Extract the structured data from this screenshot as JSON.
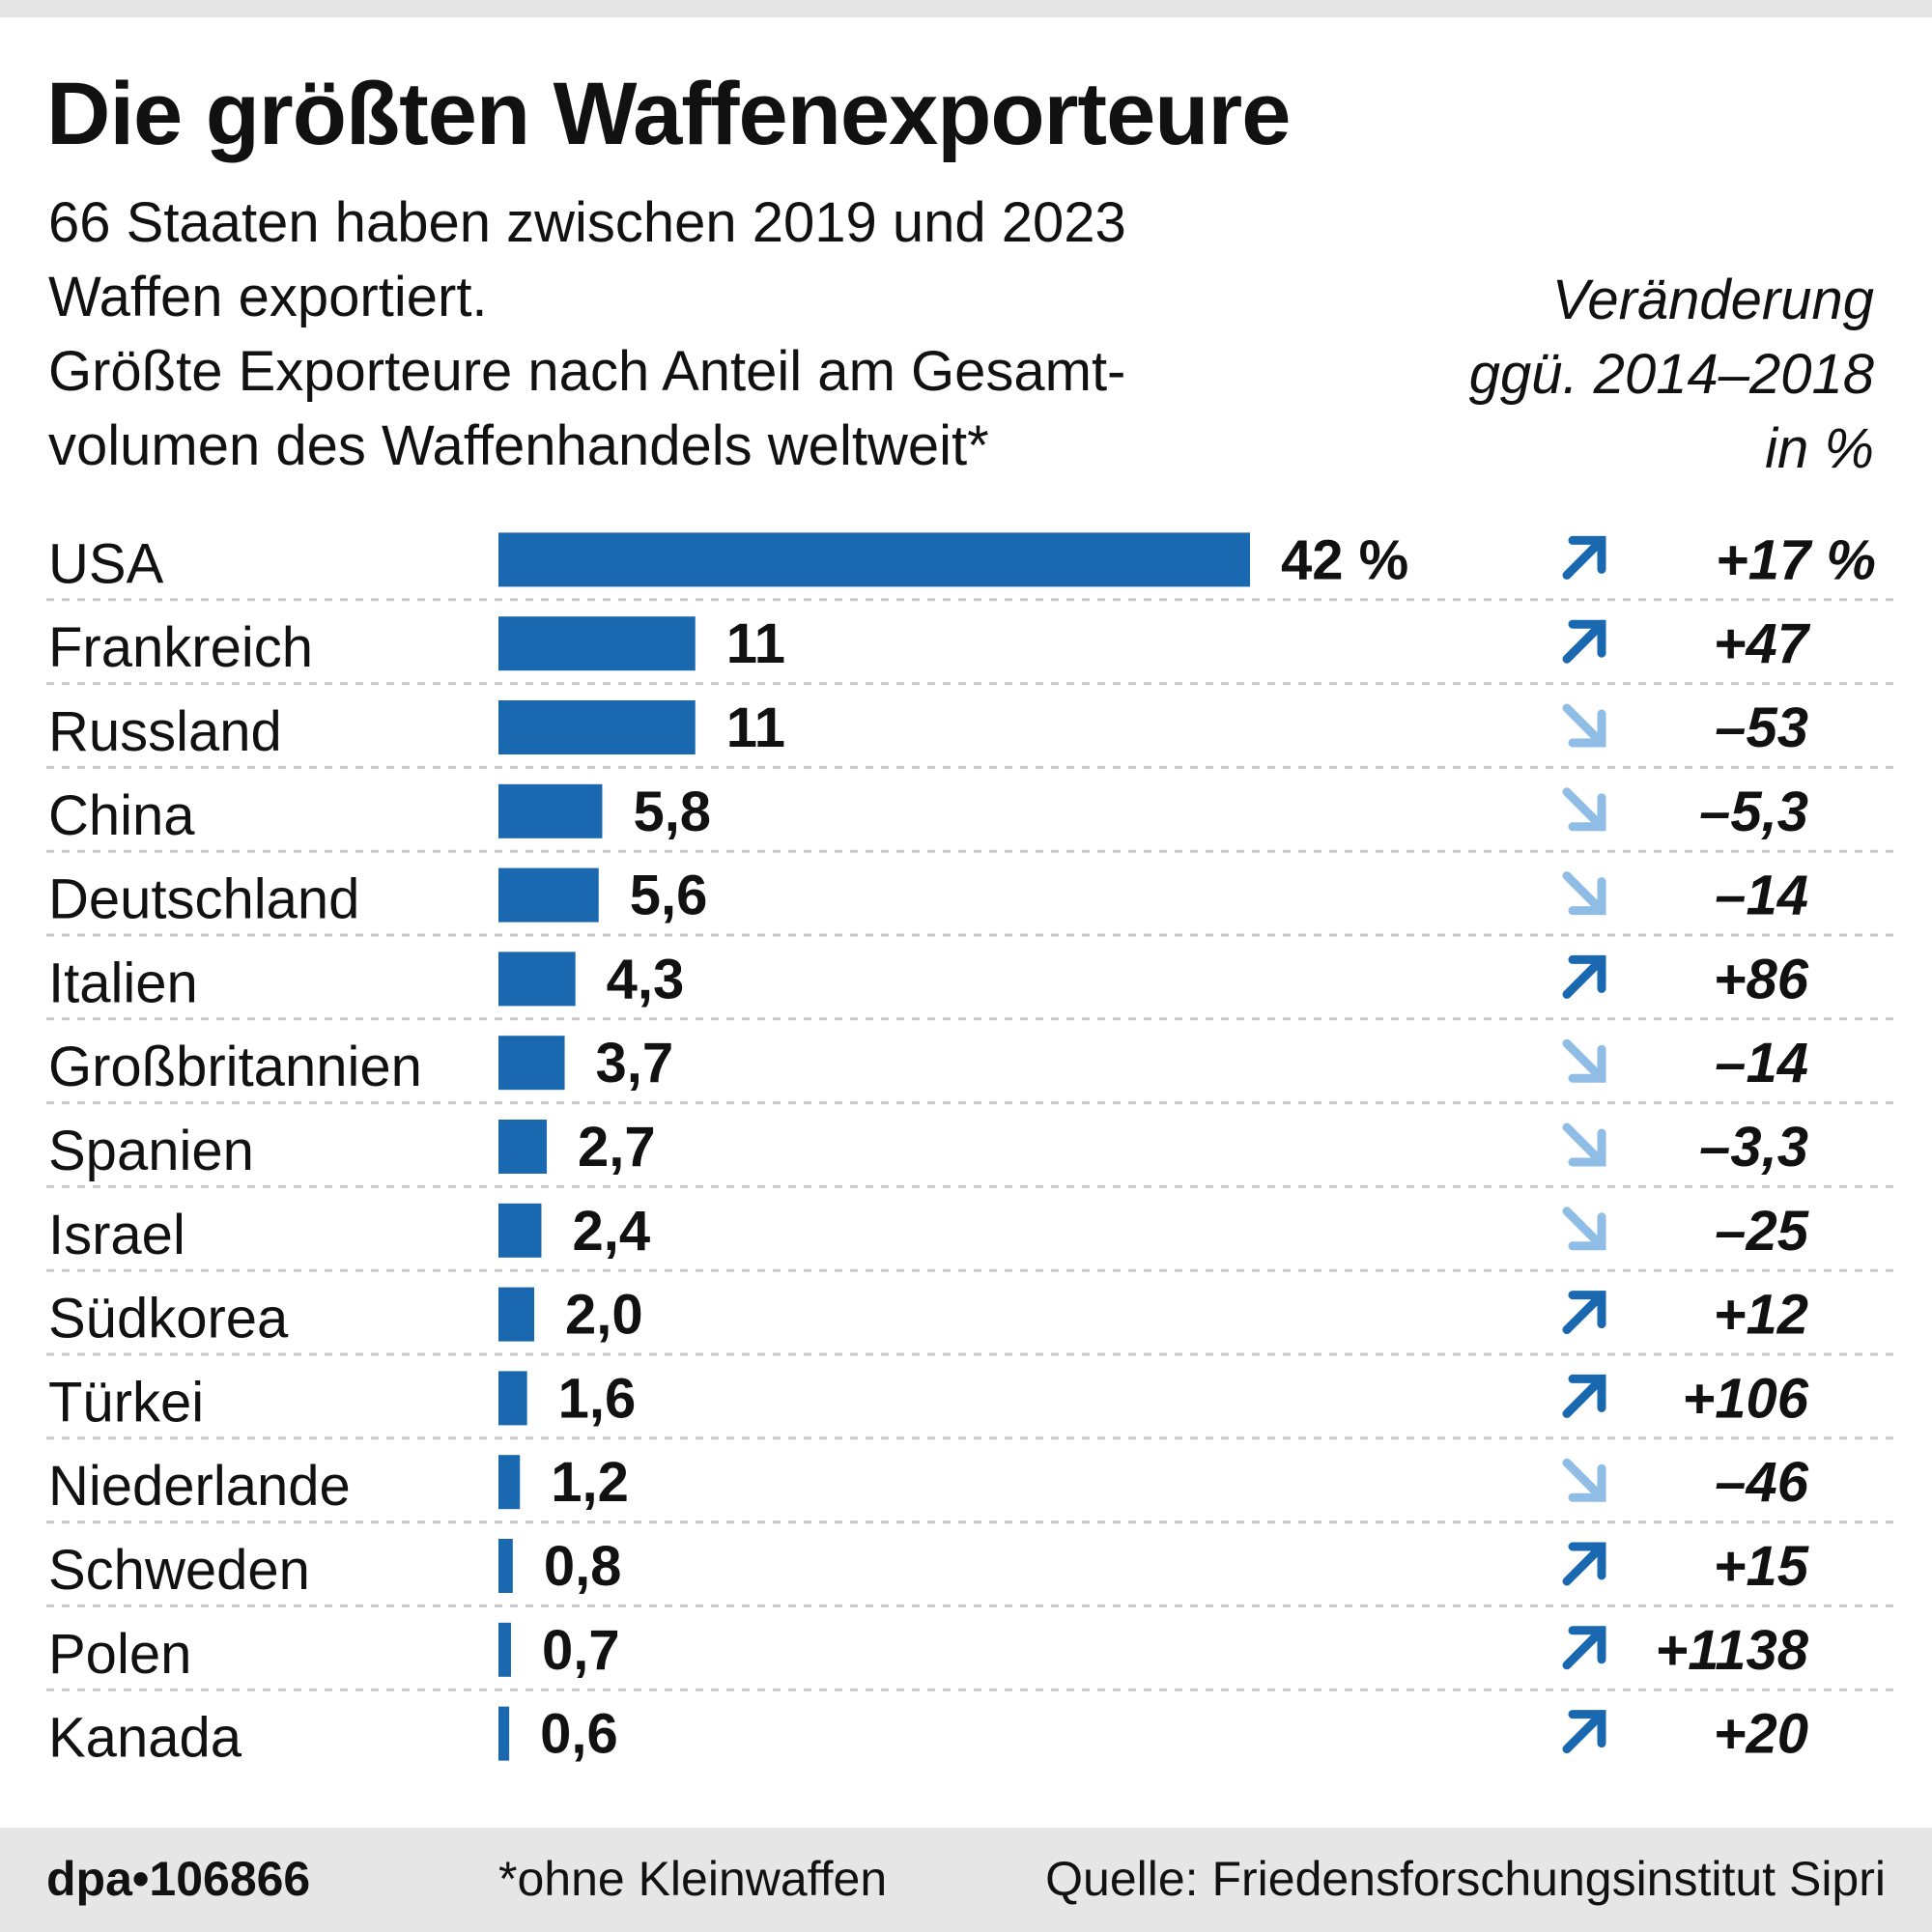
{
  "header": {
    "title": "Die größten Waffenexporteure",
    "subtitle_lines": [
      "66 Staaten haben zwischen 2019 und 2023",
      "Waffen exportiert.",
      "Größte Exporteure nach Anteil am Gesamt-",
      "volumen des Waffenhandels weltweit*"
    ],
    "change_header_lines": [
      "Veränderung",
      "ggü. 2014–2018",
      "in %"
    ]
  },
  "colors": {
    "bar": "#1a68b0",
    "arrow_up": "#1a68b0",
    "arrow_down": "#8fbde6",
    "grid": "#c8c8c8",
    "footer_bg": "#e6e6e6"
  },
  "chart_data": {
    "type": "bar",
    "orientation": "horizontal",
    "title": "Die größten Waffenexporteure",
    "xlabel": "Anteil am Gesamtvolumen des Waffenhandels weltweit (%)",
    "ylabel": "",
    "xlim": [
      0,
      42
    ],
    "grid": false,
    "categories": [
      "USA",
      "Frankreich",
      "Russland",
      "China",
      "Deutschland",
      "Italien",
      "Großbritannien",
      "Spanien",
      "Israel",
      "Südkorea",
      "Türkei",
      "Niederlande",
      "Schweden",
      "Polen",
      "Kanada"
    ],
    "series": [
      {
        "name": "Anteil 2019–2023 (%)",
        "values": [
          42,
          11,
          11,
          5.8,
          5.6,
          4.3,
          3.7,
          2.7,
          2.4,
          2.0,
          1.6,
          1.2,
          0.8,
          0.7,
          0.6
        ],
        "labels": [
          "42 %",
          "11",
          "11",
          "5,8",
          "5,6",
          "4,3",
          "3,7",
          "2,7",
          "2,4",
          "2,0",
          "1,6",
          "1,2",
          "0,8",
          "0,7",
          "0,6"
        ]
      },
      {
        "name": "Veränderung ggü. 2014–2018 (%)",
        "values": [
          17,
          47,
          -53,
          -5.3,
          -14,
          86,
          -14,
          -3.3,
          -25,
          12,
          106,
          -46,
          15,
          1138,
          20
        ],
        "labels": [
          "+17 %",
          "+47",
          "–53",
          "–5,3",
          "–14",
          "+86",
          "–14",
          "–3,3",
          "–25",
          "+12",
          "+106",
          "–46",
          "+15",
          "+1138",
          "+20"
        ],
        "direction_icons": [
          "arrow-up-right",
          "arrow-up-right",
          "arrow-down-right",
          "arrow-down-right",
          "arrow-down-right",
          "arrow-up-right",
          "arrow-down-right",
          "arrow-down-right",
          "arrow-down-right",
          "arrow-up-right",
          "arrow-up-right",
          "arrow-down-right",
          "arrow-up-right",
          "arrow-up-right",
          "arrow-up-right"
        ]
      }
    ]
  },
  "footer": {
    "logo": "dpa•106866",
    "note": "*ohne Kleinwaffen",
    "source": "Quelle: Friedensforschungsinstitut Sipri"
  }
}
